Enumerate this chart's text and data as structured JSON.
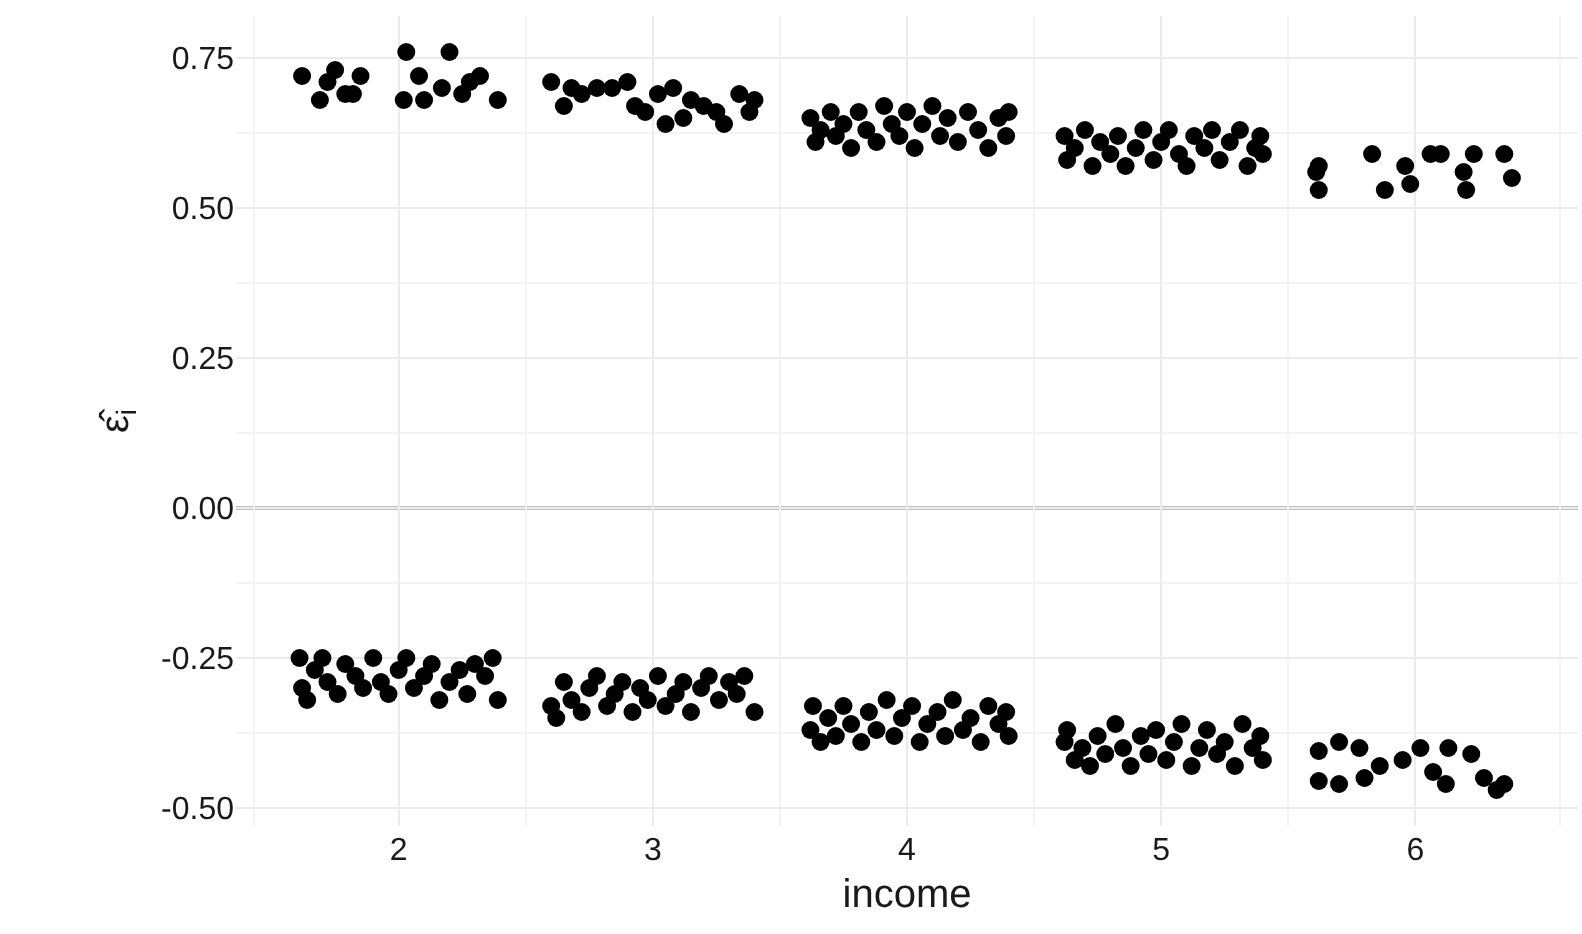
{
  "chart_data": {
    "type": "scatter",
    "xlabel": "income",
    "ylabel": "ε̂$_{i}$",
    "xlim": [
      1.36,
      6.64
    ],
    "xticks": [
      2,
      3,
      4,
      5,
      6
    ],
    "ylim": [
      -0.53,
      0.82
    ],
    "yticks": [
      {
        "value": -0.5,
        "label": "-0.50"
      },
      {
        "value": -0.25,
        "label": "-0.25"
      },
      {
        "value": 0,
        "label": "0.00"
      },
      {
        "value": 0.25,
        "label": "0.25"
      },
      {
        "value": 0.5,
        "label": "0.50"
      },
      {
        "value": 0.75,
        "label": "0.75"
      }
    ],
    "grid": true,
    "marker": "circle",
    "ref_lines": [
      {
        "axis": "y",
        "value": 0,
        "color": "#bebebe"
      }
    ],
    "series": [
      {
        "color": "#000000",
        "x": [
          1.62,
          1.69,
          1.72,
          1.75,
          1.79,
          1.82,
          1.85,
          2.02,
          2.03,
          2.08,
          2.1,
          2.17,
          2.2,
          2.25,
          2.28,
          2.32,
          2.39,
          2.6,
          2.65,
          2.68,
          2.72,
          2.78,
          2.84,
          2.9,
          2.93,
          2.97,
          3.02,
          3.05,
          3.08,
          3.12,
          3.15,
          3.2,
          3.25,
          3.28,
          3.34,
          3.38,
          3.4,
          3.62,
          3.64,
          3.66,
          3.7,
          3.72,
          3.75,
          3.78,
          3.81,
          3.84,
          3.88,
          3.91,
          3.94,
          3.97,
          4.0,
          4.03,
          4.06,
          4.1,
          4.13,
          4.16,
          4.2,
          4.24,
          4.28,
          4.32,
          4.36,
          4.39,
          4.4,
          4.62,
          4.63,
          4.66,
          4.7,
          4.73,
          4.76,
          4.8,
          4.83,
          4.86,
          4.9,
          4.93,
          4.97,
          5.0,
          5.03,
          5.07,
          5.1,
          5.13,
          5.17,
          5.2,
          5.23,
          5.27,
          5.31,
          5.34,
          5.37,
          5.39,
          5.4,
          5.61,
          5.62,
          5.62,
          5.83,
          5.88,
          5.96,
          5.98,
          6.06,
          6.1,
          6.19,
          6.2,
          6.23,
          6.35,
          6.38,
          1.61,
          1.62,
          1.64,
          1.67,
          1.7,
          1.72,
          1.76,
          1.79,
          1.83,
          1.86,
          1.9,
          1.93,
          1.96,
          2.0,
          2.03,
          2.06,
          2.1,
          2.13,
          2.16,
          2.2,
          2.24,
          2.27,
          2.3,
          2.34,
          2.37,
          2.39,
          2.6,
          2.62,
          2.65,
          2.68,
          2.72,
          2.75,
          2.78,
          2.82,
          2.85,
          2.88,
          2.92,
          2.95,
          2.98,
          3.02,
          3.05,
          3.09,
          3.12,
          3.15,
          3.19,
          3.22,
          3.26,
          3.3,
          3.33,
          3.36,
          3.4,
          3.62,
          3.63,
          3.66,
          3.69,
          3.72,
          3.75,
          3.78,
          3.82,
          3.85,
          3.88,
          3.92,
          3.95,
          3.98,
          4.02,
          4.05,
          4.08,
          4.12,
          4.15,
          4.18,
          4.22,
          4.25,
          4.29,
          4.32,
          4.36,
          4.39,
          4.4,
          4.62,
          4.63,
          4.66,
          4.69,
          4.72,
          4.75,
          4.78,
          4.82,
          4.85,
          4.88,
          4.92,
          4.95,
          4.98,
          5.02,
          5.05,
          5.08,
          5.12,
          5.15,
          5.18,
          5.22,
          5.25,
          5.29,
          5.32,
          5.36,
          5.39,
          5.4,
          5.62,
          5.62,
          5.7,
          5.7,
          5.78,
          5.8,
          5.86,
          5.95,
          6.02,
          6.07,
          6.12,
          6.13,
          6.22,
          6.27,
          6.32,
          6.35
        ],
        "values": [
          0.72,
          0.68,
          0.71,
          0.73,
          0.69,
          0.69,
          0.72,
          0.68,
          0.76,
          0.72,
          0.68,
          0.7,
          0.76,
          0.69,
          0.71,
          0.72,
          0.68,
          0.71,
          0.67,
          0.7,
          0.69,
          0.7,
          0.7,
          0.71,
          0.67,
          0.66,
          0.69,
          0.64,
          0.7,
          0.65,
          0.68,
          0.67,
          0.66,
          0.64,
          0.69,
          0.66,
          0.68,
          0.65,
          0.61,
          0.63,
          0.66,
          0.62,
          0.64,
          0.6,
          0.66,
          0.63,
          0.61,
          0.67,
          0.64,
          0.62,
          0.66,
          0.6,
          0.64,
          0.67,
          0.62,
          0.65,
          0.61,
          0.66,
          0.63,
          0.6,
          0.65,
          0.62,
          0.66,
          0.62,
          0.58,
          0.6,
          0.63,
          0.57,
          0.61,
          0.59,
          0.62,
          0.57,
          0.6,
          0.63,
          0.58,
          0.61,
          0.63,
          0.59,
          0.57,
          0.62,
          0.6,
          0.63,
          0.58,
          0.61,
          0.63,
          0.57,
          0.6,
          0.62,
          0.59,
          0.56,
          0.57,
          0.53,
          0.59,
          0.53,
          0.57,
          0.54,
          0.59,
          0.59,
          0.56,
          0.53,
          0.59,
          0.59,
          0.55,
          -0.25,
          -0.3,
          -0.32,
          -0.27,
          -0.25,
          -0.29,
          -0.31,
          -0.26,
          -0.28,
          -0.3,
          -0.25,
          -0.29,
          -0.31,
          -0.27,
          -0.25,
          -0.3,
          -0.28,
          -0.26,
          -0.32,
          -0.29,
          -0.27,
          -0.31,
          -0.26,
          -0.28,
          -0.25,
          -0.32,
          -0.33,
          -0.35,
          -0.29,
          -0.32,
          -0.34,
          -0.3,
          -0.28,
          -0.33,
          -0.31,
          -0.29,
          -0.34,
          -0.3,
          -0.32,
          -0.28,
          -0.33,
          -0.31,
          -0.29,
          -0.34,
          -0.3,
          -0.28,
          -0.32,
          -0.29,
          -0.31,
          -0.28,
          -0.34,
          -0.37,
          -0.33,
          -0.39,
          -0.35,
          -0.38,
          -0.33,
          -0.36,
          -0.39,
          -0.34,
          -0.37,
          -0.32,
          -0.38,
          -0.35,
          -0.33,
          -0.39,
          -0.36,
          -0.34,
          -0.38,
          -0.32,
          -0.37,
          -0.35,
          -0.39,
          -0.33,
          -0.36,
          -0.34,
          -0.38,
          -0.39,
          -0.37,
          -0.42,
          -0.4,
          -0.43,
          -0.38,
          -0.41,
          -0.36,
          -0.4,
          -0.43,
          -0.38,
          -0.41,
          -0.37,
          -0.42,
          -0.39,
          -0.36,
          -0.43,
          -0.4,
          -0.37,
          -0.41,
          -0.39,
          -0.43,
          -0.36,
          -0.4,
          -0.38,
          -0.42,
          -0.405,
          -0.455,
          -0.39,
          -0.46,
          -0.4,
          -0.45,
          -0.43,
          -0.42,
          -0.4,
          -0.44,
          -0.46,
          -0.4,
          -0.41,
          -0.45,
          -0.47,
          -0.46
        ]
      }
    ]
  }
}
